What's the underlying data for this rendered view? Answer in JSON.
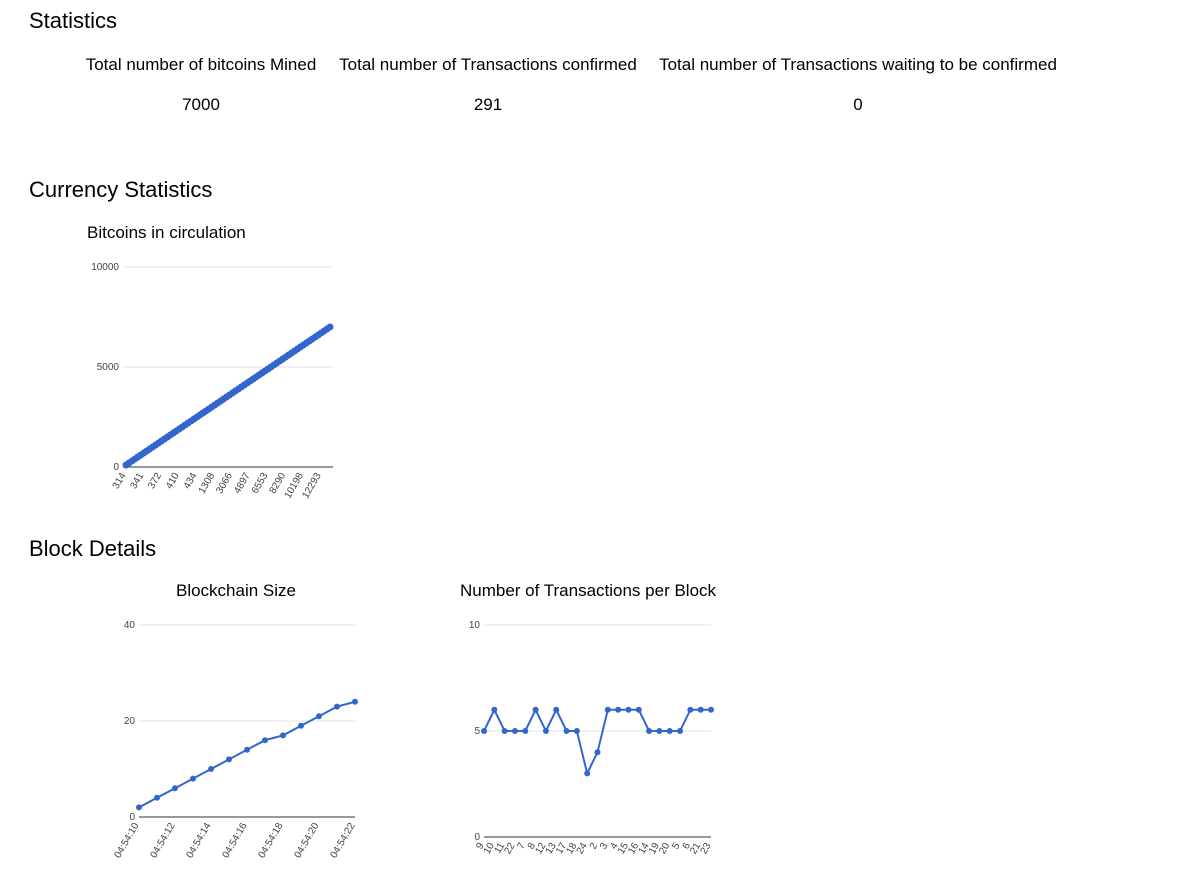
{
  "headings": [
    "Statistics",
    "Currency Statistics",
    "Block Details"
  ],
  "stats": {
    "labels": [
      "Total number of bitcoins Mined",
      "Total number of Transactions confirmed",
      "Total number of Transactions waiting to be confirmed"
    ],
    "values": [
      7000,
      291,
      0
    ]
  },
  "chart_data": [
    {
      "type": "line",
      "title": "Bitcoins in circulation",
      "color": "#3366cc",
      "grid": true,
      "points": true,
      "ylim": [
        0,
        10000
      ],
      "yticks": [
        0,
        5000,
        10000
      ],
      "categories": [
        "314",
        null,
        null,
        null,
        null,
        null,
        "341",
        null,
        null,
        null,
        null,
        null,
        "372",
        null,
        null,
        null,
        null,
        null,
        "410",
        null,
        null,
        null,
        null,
        null,
        "434",
        null,
        null,
        null,
        null,
        null,
        "1308",
        null,
        null,
        null,
        null,
        null,
        "3066",
        null,
        null,
        null,
        null,
        null,
        "4897",
        null,
        null,
        null,
        null,
        null,
        "6553",
        null,
        null,
        null,
        null,
        null,
        "8290",
        null,
        null,
        null,
        null,
        null,
        "10198",
        null,
        null,
        null,
        null,
        null,
        "12293",
        null,
        null,
        null
      ],
      "values": [
        100,
        200,
        300,
        400,
        500,
        600,
        700,
        800,
        900,
        1000,
        1100,
        1200,
        1300,
        1400,
        1500,
        1600,
        1700,
        1800,
        1900,
        2000,
        2100,
        2200,
        2300,
        2400,
        2500,
        2600,
        2700,
        2800,
        2900,
        3000,
        3100,
        3200,
        3300,
        3400,
        3500,
        3600,
        3700,
        3800,
        3900,
        4000,
        4100,
        4200,
        4300,
        4400,
        4500,
        4600,
        4700,
        4800,
        4900,
        5000,
        5100,
        5200,
        5300,
        5400,
        5500,
        5600,
        5700,
        5800,
        5900,
        6000,
        6100,
        6200,
        6300,
        6400,
        6500,
        6600,
        6700,
        6800,
        6900,
        7000
      ]
    },
    {
      "type": "line",
      "title": "Blockchain Size",
      "color": "#3366cc",
      "grid": true,
      "points": true,
      "ylim": [
        0,
        40
      ],
      "yticks": [
        0,
        20,
        40
      ],
      "categories": [
        "04:54:10",
        null,
        "04:54:12",
        null,
        "04:54:14",
        null,
        "04:54:16",
        null,
        "04:54:18",
        null,
        "04:54:20",
        null,
        "04:54:22"
      ],
      "values": [
        2,
        4,
        6,
        8,
        10,
        12,
        14,
        16,
        17,
        19,
        21,
        23,
        24
      ]
    },
    {
      "type": "line",
      "title": "Number of Transactions per Block",
      "color": "#3366cc",
      "grid": true,
      "points": true,
      "ylim": [
        0,
        10
      ],
      "yticks": [
        0,
        5,
        10
      ],
      "categories": [
        "9",
        "10",
        "11",
        "22",
        "7",
        "8",
        "12",
        "13",
        "17",
        "18",
        "24",
        "2",
        "3",
        "4",
        "15",
        "16",
        "14",
        "19",
        "20",
        "5",
        "6",
        "21",
        "23"
      ],
      "values": [
        5,
        6,
        5,
        5,
        5,
        6,
        5,
        6,
        5,
        5,
        3,
        4,
        6,
        6,
        6,
        6,
        5,
        5,
        5,
        5,
        6,
        6,
        6
      ]
    }
  ]
}
